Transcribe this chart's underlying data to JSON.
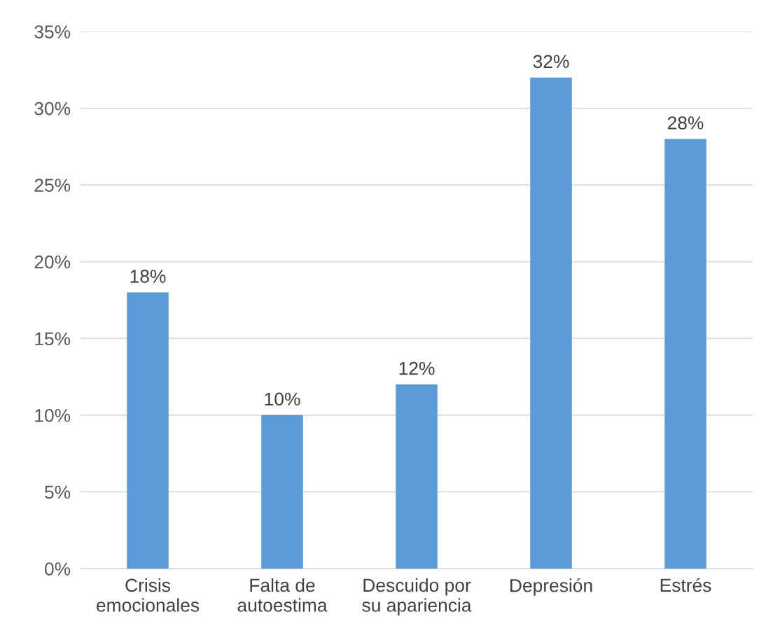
{
  "chart_data": {
    "type": "bar",
    "categories": [
      "Crisis\nemocionales",
      "Falta de\nautoestima",
      "Descuido por\nsu apariencia",
      "Depresión",
      "Estrés"
    ],
    "values": [
      18,
      10,
      12,
      32,
      28
    ],
    "value_labels": [
      "18%",
      "10%",
      "12%",
      "32%",
      "28%"
    ],
    "color": "#5b9bd5",
    "ylim": [
      0,
      35
    ],
    "yticks": [
      {
        "value": 0,
        "label": "0%"
      },
      {
        "value": 5,
        "label": "5%"
      },
      {
        "value": 10,
        "label": "10%"
      },
      {
        "value": 15,
        "label": "15%"
      },
      {
        "value": 20,
        "label": "20%"
      },
      {
        "value": 25,
        "label": "25%"
      },
      {
        "value": 30,
        "label": "30%"
      },
      {
        "value": 35,
        "label": "35%"
      }
    ],
    "grid": "y",
    "legend": false
  }
}
